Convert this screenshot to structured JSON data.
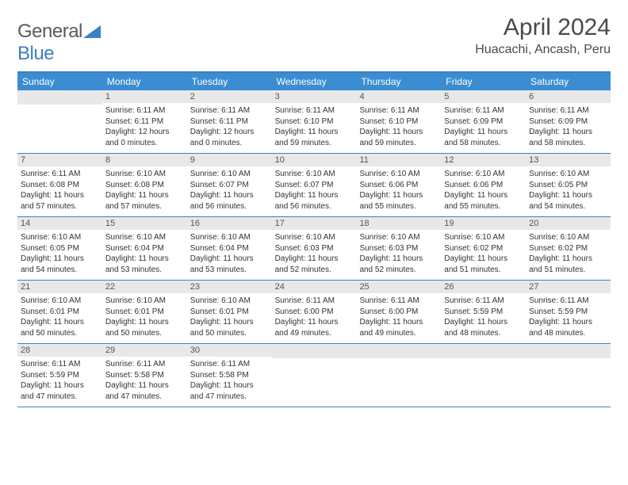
{
  "logo": {
    "word1": "General",
    "word2": "Blue"
  },
  "title": "April 2024",
  "location": "Huacachi, Ancash, Peru",
  "colors": {
    "header_bg": "#3b8dd1",
    "header_text": "#ffffff",
    "accent_line": "#3b7fc4",
    "daynum_bg": "#e8e8e8",
    "text": "#333333",
    "logo_gray": "#5a5a5a",
    "logo_blue": "#3b7fc4"
  },
  "weekdays": [
    "Sunday",
    "Monday",
    "Tuesday",
    "Wednesday",
    "Thursday",
    "Friday",
    "Saturday"
  ],
  "weeks": [
    [
      {
        "day": "",
        "sunrise": "",
        "sunset": "",
        "daylight1": "",
        "daylight2": ""
      },
      {
        "day": "1",
        "sunrise": "Sunrise: 6:11 AM",
        "sunset": "Sunset: 6:11 PM",
        "daylight1": "Daylight: 12 hours",
        "daylight2": "and 0 minutes."
      },
      {
        "day": "2",
        "sunrise": "Sunrise: 6:11 AM",
        "sunset": "Sunset: 6:11 PM",
        "daylight1": "Daylight: 12 hours",
        "daylight2": "and 0 minutes."
      },
      {
        "day": "3",
        "sunrise": "Sunrise: 6:11 AM",
        "sunset": "Sunset: 6:10 PM",
        "daylight1": "Daylight: 11 hours",
        "daylight2": "and 59 minutes."
      },
      {
        "day": "4",
        "sunrise": "Sunrise: 6:11 AM",
        "sunset": "Sunset: 6:10 PM",
        "daylight1": "Daylight: 11 hours",
        "daylight2": "and 59 minutes."
      },
      {
        "day": "5",
        "sunrise": "Sunrise: 6:11 AM",
        "sunset": "Sunset: 6:09 PM",
        "daylight1": "Daylight: 11 hours",
        "daylight2": "and 58 minutes."
      },
      {
        "day": "6",
        "sunrise": "Sunrise: 6:11 AM",
        "sunset": "Sunset: 6:09 PM",
        "daylight1": "Daylight: 11 hours",
        "daylight2": "and 58 minutes."
      }
    ],
    [
      {
        "day": "7",
        "sunrise": "Sunrise: 6:11 AM",
        "sunset": "Sunset: 6:08 PM",
        "daylight1": "Daylight: 11 hours",
        "daylight2": "and 57 minutes."
      },
      {
        "day": "8",
        "sunrise": "Sunrise: 6:10 AM",
        "sunset": "Sunset: 6:08 PM",
        "daylight1": "Daylight: 11 hours",
        "daylight2": "and 57 minutes."
      },
      {
        "day": "9",
        "sunrise": "Sunrise: 6:10 AM",
        "sunset": "Sunset: 6:07 PM",
        "daylight1": "Daylight: 11 hours",
        "daylight2": "and 56 minutes."
      },
      {
        "day": "10",
        "sunrise": "Sunrise: 6:10 AM",
        "sunset": "Sunset: 6:07 PM",
        "daylight1": "Daylight: 11 hours",
        "daylight2": "and 56 minutes."
      },
      {
        "day": "11",
        "sunrise": "Sunrise: 6:10 AM",
        "sunset": "Sunset: 6:06 PM",
        "daylight1": "Daylight: 11 hours",
        "daylight2": "and 55 minutes."
      },
      {
        "day": "12",
        "sunrise": "Sunrise: 6:10 AM",
        "sunset": "Sunset: 6:06 PM",
        "daylight1": "Daylight: 11 hours",
        "daylight2": "and 55 minutes."
      },
      {
        "day": "13",
        "sunrise": "Sunrise: 6:10 AM",
        "sunset": "Sunset: 6:05 PM",
        "daylight1": "Daylight: 11 hours",
        "daylight2": "and 54 minutes."
      }
    ],
    [
      {
        "day": "14",
        "sunrise": "Sunrise: 6:10 AM",
        "sunset": "Sunset: 6:05 PM",
        "daylight1": "Daylight: 11 hours",
        "daylight2": "and 54 minutes."
      },
      {
        "day": "15",
        "sunrise": "Sunrise: 6:10 AM",
        "sunset": "Sunset: 6:04 PM",
        "daylight1": "Daylight: 11 hours",
        "daylight2": "and 53 minutes."
      },
      {
        "day": "16",
        "sunrise": "Sunrise: 6:10 AM",
        "sunset": "Sunset: 6:04 PM",
        "daylight1": "Daylight: 11 hours",
        "daylight2": "and 53 minutes."
      },
      {
        "day": "17",
        "sunrise": "Sunrise: 6:10 AM",
        "sunset": "Sunset: 6:03 PM",
        "daylight1": "Daylight: 11 hours",
        "daylight2": "and 52 minutes."
      },
      {
        "day": "18",
        "sunrise": "Sunrise: 6:10 AM",
        "sunset": "Sunset: 6:03 PM",
        "daylight1": "Daylight: 11 hours",
        "daylight2": "and 52 minutes."
      },
      {
        "day": "19",
        "sunrise": "Sunrise: 6:10 AM",
        "sunset": "Sunset: 6:02 PM",
        "daylight1": "Daylight: 11 hours",
        "daylight2": "and 51 minutes."
      },
      {
        "day": "20",
        "sunrise": "Sunrise: 6:10 AM",
        "sunset": "Sunset: 6:02 PM",
        "daylight1": "Daylight: 11 hours",
        "daylight2": "and 51 minutes."
      }
    ],
    [
      {
        "day": "21",
        "sunrise": "Sunrise: 6:10 AM",
        "sunset": "Sunset: 6:01 PM",
        "daylight1": "Daylight: 11 hours",
        "daylight2": "and 50 minutes."
      },
      {
        "day": "22",
        "sunrise": "Sunrise: 6:10 AM",
        "sunset": "Sunset: 6:01 PM",
        "daylight1": "Daylight: 11 hours",
        "daylight2": "and 50 minutes."
      },
      {
        "day": "23",
        "sunrise": "Sunrise: 6:10 AM",
        "sunset": "Sunset: 6:01 PM",
        "daylight1": "Daylight: 11 hours",
        "daylight2": "and 50 minutes."
      },
      {
        "day": "24",
        "sunrise": "Sunrise: 6:11 AM",
        "sunset": "Sunset: 6:00 PM",
        "daylight1": "Daylight: 11 hours",
        "daylight2": "and 49 minutes."
      },
      {
        "day": "25",
        "sunrise": "Sunrise: 6:11 AM",
        "sunset": "Sunset: 6:00 PM",
        "daylight1": "Daylight: 11 hours",
        "daylight2": "and 49 minutes."
      },
      {
        "day": "26",
        "sunrise": "Sunrise: 6:11 AM",
        "sunset": "Sunset: 5:59 PM",
        "daylight1": "Daylight: 11 hours",
        "daylight2": "and 48 minutes."
      },
      {
        "day": "27",
        "sunrise": "Sunrise: 6:11 AM",
        "sunset": "Sunset: 5:59 PM",
        "daylight1": "Daylight: 11 hours",
        "daylight2": "and 48 minutes."
      }
    ],
    [
      {
        "day": "28",
        "sunrise": "Sunrise: 6:11 AM",
        "sunset": "Sunset: 5:59 PM",
        "daylight1": "Daylight: 11 hours",
        "daylight2": "and 47 minutes."
      },
      {
        "day": "29",
        "sunrise": "Sunrise: 6:11 AM",
        "sunset": "Sunset: 5:58 PM",
        "daylight1": "Daylight: 11 hours",
        "daylight2": "and 47 minutes."
      },
      {
        "day": "30",
        "sunrise": "Sunrise: 6:11 AM",
        "sunset": "Sunset: 5:58 PM",
        "daylight1": "Daylight: 11 hours",
        "daylight2": "and 47 minutes."
      },
      {
        "day": "",
        "sunrise": "",
        "sunset": "",
        "daylight1": "",
        "daylight2": ""
      },
      {
        "day": "",
        "sunrise": "",
        "sunset": "",
        "daylight1": "",
        "daylight2": ""
      },
      {
        "day": "",
        "sunrise": "",
        "sunset": "",
        "daylight1": "",
        "daylight2": ""
      },
      {
        "day": "",
        "sunrise": "",
        "sunset": "",
        "daylight1": "",
        "daylight2": ""
      }
    ]
  ]
}
